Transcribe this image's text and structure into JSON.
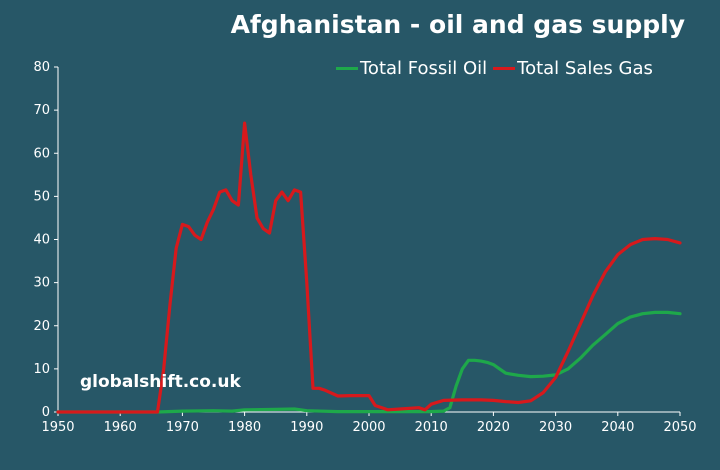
{
  "colors": {
    "background": "#275767",
    "axis": "#ffffff",
    "oil": "#1ea84a",
    "gas": "#d7191c"
  },
  "watermark": "globalshift.co.uk",
  "chart_data": {
    "type": "line",
    "title": "Afghanistan - oil and gas supply",
    "xlabel": "",
    "ylabel": "",
    "xlim": [
      1950,
      2050
    ],
    "ylim": [
      0,
      80
    ],
    "x_ticks": [
      1950,
      1960,
      1970,
      1980,
      1990,
      2000,
      2010,
      2020,
      2030,
      2040,
      2050
    ],
    "y_ticks": [
      0,
      10,
      20,
      30,
      40,
      50,
      60,
      70,
      80
    ],
    "grid": false,
    "legend": "top-right",
    "series": [
      {
        "name": "Total Fossil Oil",
        "color": "#1ea84a",
        "points": [
          [
            1950,
            0
          ],
          [
            1966,
            0
          ],
          [
            1970,
            0.2
          ],
          [
            1975,
            0.3
          ],
          [
            1978,
            0.2
          ],
          [
            1980,
            0.5
          ],
          [
            1985,
            0.6
          ],
          [
            1988,
            0.7
          ],
          [
            1990,
            0.3
          ],
          [
            1995,
            0.1
          ],
          [
            2000,
            0.1
          ],
          [
            2005,
            0.1
          ],
          [
            2010,
            0.1
          ],
          [
            2012,
            0.2
          ],
          [
            2013,
            1
          ],
          [
            2014,
            6
          ],
          [
            2015,
            10
          ],
          [
            2016,
            12
          ],
          [
            2017,
            12
          ],
          [
            2018,
            11.8
          ],
          [
            2019,
            11.5
          ],
          [
            2020,
            11
          ],
          [
            2021,
            10
          ],
          [
            2022,
            9
          ],
          [
            2024,
            8.5
          ],
          [
            2026,
            8.2
          ],
          [
            2028,
            8.3
          ],
          [
            2030,
            8.6
          ],
          [
            2032,
            10
          ],
          [
            2034,
            12.5
          ],
          [
            2036,
            15.5
          ],
          [
            2038,
            18
          ],
          [
            2040,
            20.5
          ],
          [
            2042,
            22
          ],
          [
            2044,
            22.8
          ],
          [
            2046,
            23.1
          ],
          [
            2048,
            23.1
          ],
          [
            2050,
            22.8
          ]
        ]
      },
      {
        "name": "Total Sales Gas",
        "color": "#d7191c",
        "points": [
          [
            1950,
            0
          ],
          [
            1966,
            0
          ],
          [
            1967,
            10
          ],
          [
            1968,
            25
          ],
          [
            1969,
            38
          ],
          [
            1970,
            43.5
          ],
          [
            1971,
            43
          ],
          [
            1972,
            41
          ],
          [
            1973,
            40
          ],
          [
            1974,
            44
          ],
          [
            1975,
            47
          ],
          [
            1976,
            51
          ],
          [
            1977,
            51.5
          ],
          [
            1978,
            49
          ],
          [
            1979,
            48
          ],
          [
            1980,
            67
          ],
          [
            1981,
            55
          ],
          [
            1982,
            45
          ],
          [
            1983,
            42.5
          ],
          [
            1984,
            41.5
          ],
          [
            1985,
            49
          ],
          [
            1986,
            51
          ],
          [
            1987,
            49
          ],
          [
            1988,
            51.5
          ],
          [
            1989,
            51
          ],
          [
            1990,
            30
          ],
          [
            1991,
            5.5
          ],
          [
            1992,
            5.5
          ],
          [
            1993,
            5
          ],
          [
            1995,
            3.7
          ],
          [
            1997,
            3.8
          ],
          [
            2000,
            3.8
          ],
          [
            2001,
            1.5
          ],
          [
            2003,
            0.5
          ],
          [
            2005,
            0.7
          ],
          [
            2008,
            1
          ],
          [
            2009,
            0.5
          ],
          [
            2010,
            1.8
          ],
          [
            2012,
            2.7
          ],
          [
            2015,
            2.8
          ],
          [
            2018,
            2.8
          ],
          [
            2020,
            2.7
          ],
          [
            2022,
            2.4
          ],
          [
            2024,
            2.2
          ],
          [
            2026,
            2.6
          ],
          [
            2028,
            4.5
          ],
          [
            2030,
            8
          ],
          [
            2032,
            14
          ],
          [
            2034,
            20.5
          ],
          [
            2036,
            27
          ],
          [
            2038,
            32.5
          ],
          [
            2040,
            36.5
          ],
          [
            2042,
            38.8
          ],
          [
            2044,
            40
          ],
          [
            2046,
            40.2
          ],
          [
            2048,
            40
          ],
          [
            2050,
            39.2
          ]
        ]
      }
    ]
  }
}
